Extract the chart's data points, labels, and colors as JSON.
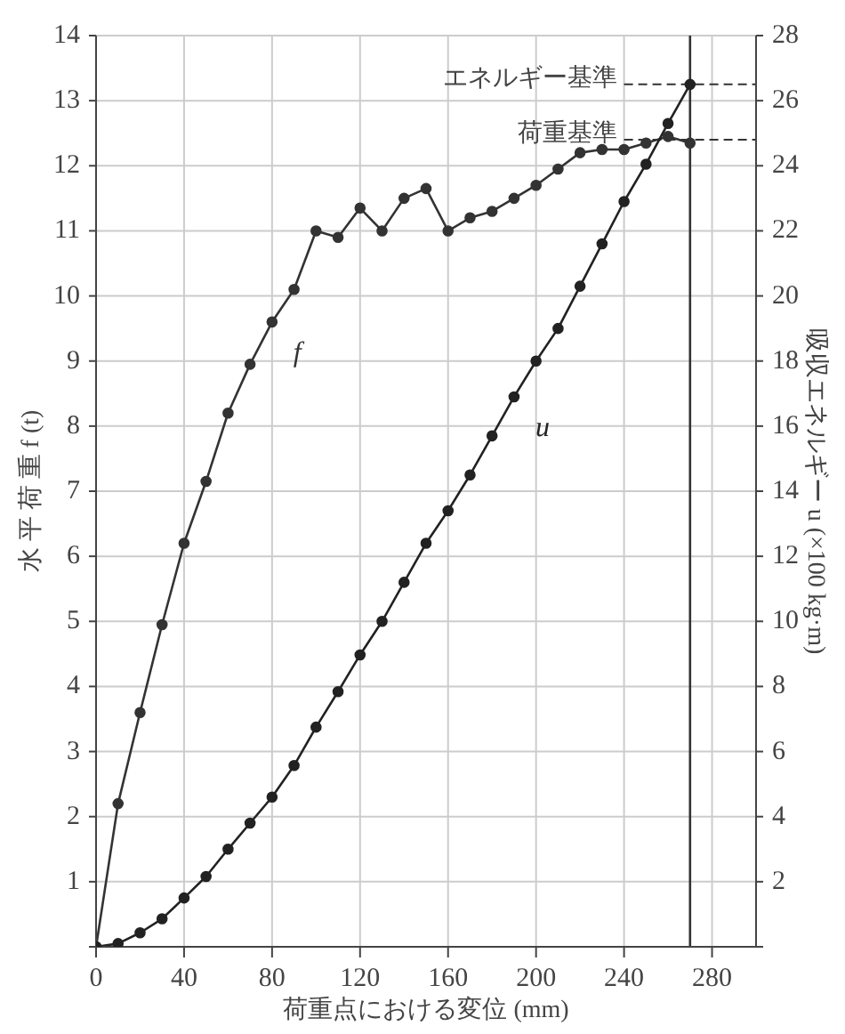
{
  "chart_data": {
    "type": "line",
    "xlabel": "荷重点における変位 (mm)",
    "ylabel": "水 平 荷 重 f (t)",
    "y2label": "吸収エネルギー u (×100 kg·m)",
    "x": [
      0,
      10,
      20,
      30,
      40,
      50,
      60,
      70,
      80,
      90,
      100,
      110,
      120,
      130,
      140,
      150,
      160,
      170,
      180,
      190,
      200,
      210,
      220,
      230,
      240,
      250,
      260,
      270
    ],
    "series": [
      {
        "name": "f",
        "color": "#333333",
        "values": [
          0,
          2.2,
          3.6,
          4.95,
          6.2,
          7.15,
          8.2,
          8.95,
          9.6,
          10.1,
          11.0,
          10.9,
          11.35,
          11.0,
          11.5,
          11.65,
          11.0,
          11.2,
          11.3,
          11.5,
          11.7,
          11.95,
          12.2,
          12.25,
          12.25,
          12.35,
          12.45,
          12.35
        ]
      },
      {
        "name": "u",
        "color": "#222222",
        "axis": "y2",
        "values": [
          0,
          0.1,
          0.43,
          0.86,
          1.5,
          2.16,
          3.0,
          3.8,
          4.6,
          5.57,
          6.75,
          7.84,
          8.97,
          10.0,
          11.2,
          12.4,
          13.4,
          14.5,
          15.7,
          16.9,
          18.0,
          19.0,
          20.3,
          21.6,
          22.9,
          24.05,
          25.3,
          26.5
        ]
      }
    ],
    "xlim": [
      0,
      300
    ],
    "xticks": [
      0,
      40,
      80,
      120,
      160,
      200,
      240,
      280
    ],
    "ylim": [
      0,
      14
    ],
    "yticks": [
      {
        "value": 0,
        "label": null
      },
      1,
      2,
      3,
      4,
      5,
      6,
      7,
      8,
      9,
      10,
      11,
      12,
      13,
      14
    ],
    "y2lim": [
      0,
      28
    ],
    "y2ticks": [
      {
        "value": 0,
        "label": null
      },
      2,
      4,
      6,
      8,
      10,
      12,
      14,
      16,
      18,
      20,
      22,
      24,
      26,
      28
    ],
    "ref_lines": [
      {
        "axis": "y2",
        "value": 26.5,
        "label": "エネルギー基準",
        "line_style": "dashed"
      },
      {
        "axis": "y",
        "value": 12.4,
        "label": "荷重基準",
        "line_style": "dashed"
      },
      {
        "axis": "x",
        "value": 270,
        "line_style": "solid"
      }
    ],
    "grid": true,
    "marker": "circle",
    "line_style": "solid",
    "legend": false
  }
}
